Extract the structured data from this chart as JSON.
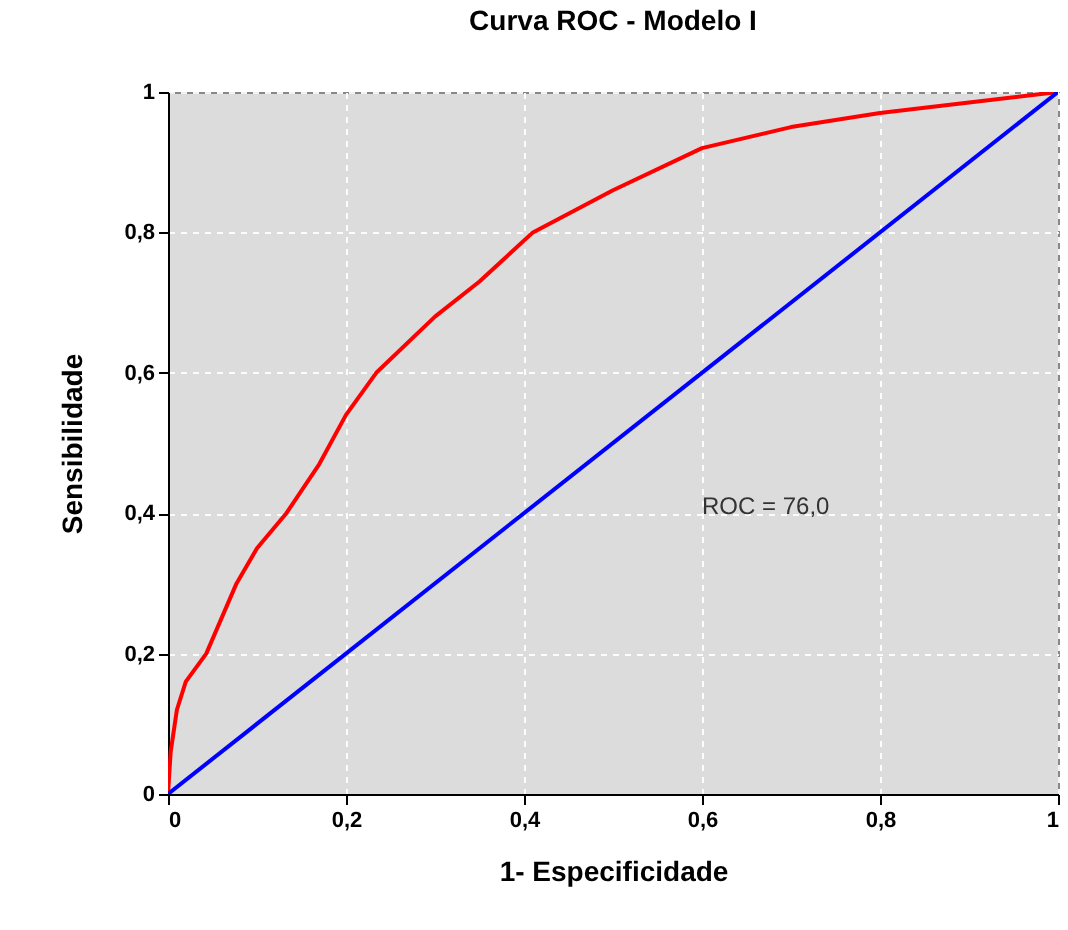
{
  "chart_data": {
    "type": "line",
    "title": "Curva ROC - Modelo I",
    "xlabel": "1- Especificidade",
    "ylabel": "Sensibilidade",
    "xlim": [
      0,
      1
    ],
    "ylim": [
      0,
      1
    ],
    "xticks": [
      0,
      {
        "value": 0.2,
        "label": "0,2"
      },
      {
        "value": 0.4,
        "label": "0,4"
      },
      {
        "value": 0.6,
        "label": "0,6"
      },
      {
        "value": 0.8,
        "label": "0,8"
      },
      1
    ],
    "yticks": [
      0,
      {
        "value": 0.2,
        "label": "0,2"
      },
      {
        "value": 0.4,
        "label": "0,4"
      },
      {
        "value": 0.6,
        "label": "0,6"
      },
      {
        "value": 0.8,
        "label": "0,8"
      },
      1
    ],
    "grid": true,
    "series": [
      {
        "color": "#ff0000",
        "x": [
          0,
          0.003,
          0.01,
          0.02,
          0.043,
          0.077,
          0.1,
          0.133,
          0.17,
          0.2,
          0.234,
          0.3,
          0.35,
          0.41,
          0.5,
          0.6,
          0.7,
          0.8,
          0.9,
          1
        ],
        "values": [
          0,
          0.06,
          0.12,
          0.16,
          0.2,
          0.3,
          0.35,
          0.4,
          0.47,
          0.54,
          0.6,
          0.68,
          0.73,
          0.8,
          0.86,
          0.92,
          0.95,
          0.97,
          0.985,
          1
        ]
      },
      {
        "color": "#0000ff",
        "x": [
          0,
          1
        ],
        "values": [
          0,
          1
        ]
      }
    ],
    "annotations": [
      "ROC = 76,0"
    ]
  }
}
